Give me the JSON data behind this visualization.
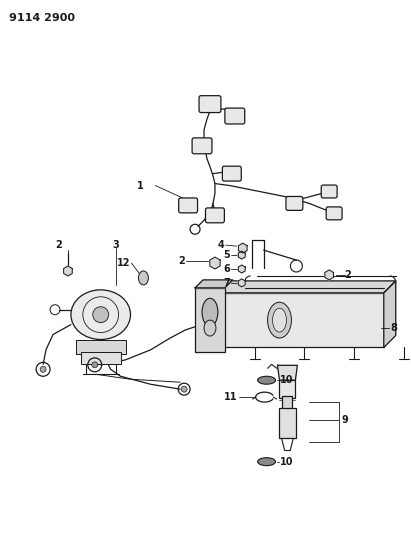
{
  "title": "9114 2900",
  "bg": "#ffffff",
  "lc": "#1a1a1a",
  "figsize": [
    4.11,
    5.33
  ],
  "dpi": 100
}
